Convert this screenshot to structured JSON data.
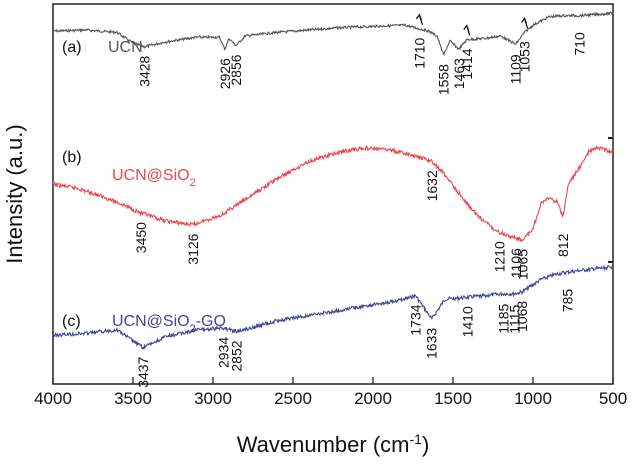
{
  "chart_data": {
    "type": "line",
    "xlabel": "Wavenumber (cm",
    "xlabel_sup": "-1",
    "xlabel_close": ")",
    "ylabel": "Intensity (a.u.)",
    "xlim": [
      4000,
      500
    ],
    "x_reversed": true,
    "x_ticks": [
      4000,
      3500,
      3000,
      2500,
      2000,
      1500,
      1000,
      500
    ],
    "grid": false,
    "series": [
      {
        "tag": "(a)",
        "name": "UCN",
        "name_sub": "",
        "name_suffix": "",
        "color": "#555555",
        "tag_color": "#111111",
        "points": [
          [
            4000,
            0.32
          ],
          [
            3800,
            0.3
          ],
          [
            3600,
            0.34
          ],
          [
            3500,
            0.52
          ],
          [
            3428,
            0.58
          ],
          [
            3300,
            0.5
          ],
          [
            3100,
            0.42
          ],
          [
            2960,
            0.42
          ],
          [
            2926,
            0.62
          ],
          [
            2900,
            0.44
          ],
          [
            2856,
            0.56
          ],
          [
            2800,
            0.4
          ],
          [
            2600,
            0.34
          ],
          [
            2400,
            0.3
          ],
          [
            2200,
            0.26
          ],
          [
            2000,
            0.24
          ],
          [
            1800,
            0.22
          ],
          [
            1710,
            0.28
          ],
          [
            1650,
            0.32
          ],
          [
            1600,
            0.4
          ],
          [
            1558,
            0.72
          ],
          [
            1520,
            0.48
          ],
          [
            1463,
            0.62
          ],
          [
            1414,
            0.46
          ],
          [
            1300,
            0.44
          ],
          [
            1200,
            0.4
          ],
          [
            1109,
            0.54
          ],
          [
            1053,
            0.34
          ],
          [
            1000,
            0.22
          ],
          [
            900,
            0.08
          ],
          [
            800,
            0.06
          ],
          [
            710,
            0.06
          ],
          [
            600,
            0.04
          ],
          [
            500,
            0.02
          ]
        ],
        "peaks": [
          {
            "wn": 3428,
            "label": "3428"
          },
          {
            "wn": 2926,
            "label": "2926"
          },
          {
            "wn": 2856,
            "label": "2856"
          },
          {
            "wn": 1710,
            "label": "1710",
            "arrow": true
          },
          {
            "wn": 1558,
            "label": "1558"
          },
          {
            "wn": 1463,
            "label": "1463"
          },
          {
            "wn": 1414,
            "label": "1414",
            "arrow": true
          },
          {
            "wn": 1109,
            "label": "1109"
          },
          {
            "wn": 1053,
            "label": "1053",
            "arrow": true
          },
          {
            "wn": 710,
            "label": "710"
          }
        ]
      },
      {
        "tag": "(b)",
        "name": "UCN@SiO",
        "name_sub": "2",
        "name_suffix": "",
        "color": "#e8474c",
        "tag_color": "#111111",
        "points": [
          [
            4000,
            0.4
          ],
          [
            3850,
            0.44
          ],
          [
            3700,
            0.52
          ],
          [
            3550,
            0.62
          ],
          [
            3450,
            0.7
          ],
          [
            3300,
            0.78
          ],
          [
            3126,
            0.82
          ],
          [
            2950,
            0.72
          ],
          [
            2800,
            0.56
          ],
          [
            2600,
            0.34
          ],
          [
            2400,
            0.16
          ],
          [
            2200,
            0.06
          ],
          [
            2050,
            0.02
          ],
          [
            1900,
            0.04
          ],
          [
            1750,
            0.1
          ],
          [
            1632,
            0.16
          ],
          [
            1550,
            0.3
          ],
          [
            1450,
            0.52
          ],
          [
            1350,
            0.72
          ],
          [
            1250,
            0.86
          ],
          [
            1210,
            0.9
          ],
          [
            1106,
            0.96
          ],
          [
            1065,
            0.98
          ],
          [
            1000,
            0.86
          ],
          [
            950,
            0.6
          ],
          [
            900,
            0.54
          ],
          [
            850,
            0.58
          ],
          [
            812,
            0.74
          ],
          [
            780,
            0.4
          ],
          [
            700,
            0.2
          ],
          [
            650,
            0.06
          ],
          [
            600,
            0.02
          ],
          [
            550,
            0.04
          ],
          [
            500,
            0.08
          ]
        ],
        "peaks": [
          {
            "wn": 3450,
            "label": "3450"
          },
          {
            "wn": 3126,
            "label": "3126"
          },
          {
            "wn": 1632,
            "label": "1632"
          },
          {
            "wn": 1210,
            "label": "1210"
          },
          {
            "wn": 1106,
            "label": "1106"
          },
          {
            "wn": 1065,
            "label": "1065"
          },
          {
            "wn": 812,
            "label": "812"
          }
        ]
      },
      {
        "tag": "(c)",
        "name": "UCN@SiO",
        "name_sub": "2",
        "name_suffix": "-GO",
        "color": "#44449a",
        "tag_color": "#111111",
        "points": [
          [
            4000,
            0.78
          ],
          [
            3800,
            0.76
          ],
          [
            3600,
            0.72
          ],
          [
            3437,
            0.92
          ],
          [
            3300,
            0.8
          ],
          [
            3100,
            0.72
          ],
          [
            2934,
            0.7
          ],
          [
            2852,
            0.74
          ],
          [
            2600,
            0.62
          ],
          [
            2400,
            0.56
          ],
          [
            2200,
            0.5
          ],
          [
            2000,
            0.44
          ],
          [
            1800,
            0.38
          ],
          [
            1734,
            0.34
          ],
          [
            1633,
            0.6
          ],
          [
            1550,
            0.38
          ],
          [
            1410,
            0.36
          ],
          [
            1300,
            0.34
          ],
          [
            1185,
            0.32
          ],
          [
            1115,
            0.32
          ],
          [
            1068,
            0.3
          ],
          [
            950,
            0.16
          ],
          [
            850,
            0.1
          ],
          [
            785,
            0.08
          ],
          [
            700,
            0.06
          ],
          [
            600,
            0.04
          ],
          [
            500,
            0.02
          ]
        ],
        "peaks": [
          {
            "wn": 3437,
            "label": "3437"
          },
          {
            "wn": 2934,
            "label": "2934"
          },
          {
            "wn": 2852,
            "label": "2852"
          },
          {
            "wn": 1734,
            "label": "1734"
          },
          {
            "wn": 1633,
            "label": "1633"
          },
          {
            "wn": 1410,
            "label": "1410"
          },
          {
            "wn": 1185,
            "label": "1185"
          },
          {
            "wn": 1115,
            "label": "1115"
          },
          {
            "wn": 1068,
            "label": "1068"
          },
          {
            "wn": 785,
            "label": "785"
          }
        ]
      }
    ]
  }
}
